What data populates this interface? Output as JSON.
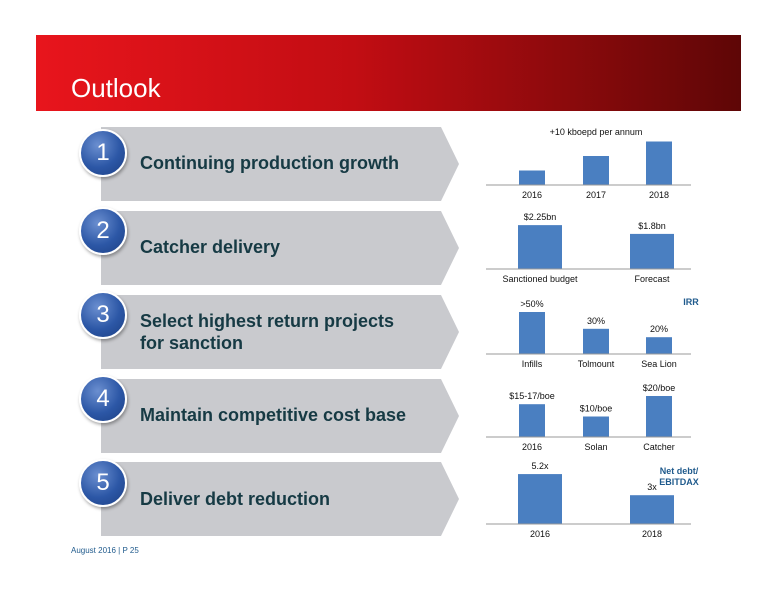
{
  "header": {
    "title": "Outlook"
  },
  "items": [
    {
      "number": "1",
      "label": "Continuing production growth",
      "icon": "number-badge"
    },
    {
      "number": "2",
      "label": "Catcher delivery",
      "icon": "number-badge"
    },
    {
      "number": "3",
      "label_line1": "Select highest return projects",
      "label_line2": "for sanction",
      "icon": "number-badge"
    },
    {
      "number": "4",
      "label": "Maintain competitive cost base",
      "icon": "number-badge"
    },
    {
      "number": "5",
      "label": "Deliver debt reduction",
      "icon": "number-badge"
    }
  ],
  "colors": {
    "accent_red": "#e8151c",
    "dark_red": "#5e0606",
    "bar_blue": "#4a7fc1",
    "badge_blue": "#2c57a6",
    "label_teal": "#163a44"
  },
  "chart_data": [
    {
      "type": "bar",
      "title": "+10 kboepd per annum",
      "categories": [
        "2016",
        "2017",
        "2018"
      ],
      "values": [
        1,
        2,
        3
      ],
      "data_labels": []
    },
    {
      "type": "bar",
      "categories": [
        "Sanctioned budget",
        "Forecast"
      ],
      "values": [
        2.25,
        1.8
      ],
      "data_labels": [
        "$2.25bn",
        "$1.8bn"
      ]
    },
    {
      "type": "bar",
      "categories": [
        "Infills",
        "Tolmount",
        "Sea Lion"
      ],
      "values": [
        50,
        30,
        20
      ],
      "data_labels": [
        ">50%",
        "30%",
        "20%"
      ],
      "annotation": "IRR"
    },
    {
      "type": "bar",
      "categories": [
        "2016",
        "Solan",
        "Catcher"
      ],
      "values": [
        16,
        10,
        20
      ],
      "data_labels": [
        "$15-17/boe",
        "$10/boe",
        "$20/boe"
      ]
    },
    {
      "type": "bar",
      "categories": [
        "2016",
        "2018"
      ],
      "values": [
        5.2,
        3
      ],
      "data_labels": [
        "5.2x",
        "3x"
      ],
      "annotation_line1": "Net debt/",
      "annotation_line2": "EBITDAX"
    }
  ],
  "footer": {
    "text": "August 2016 | P 25"
  }
}
